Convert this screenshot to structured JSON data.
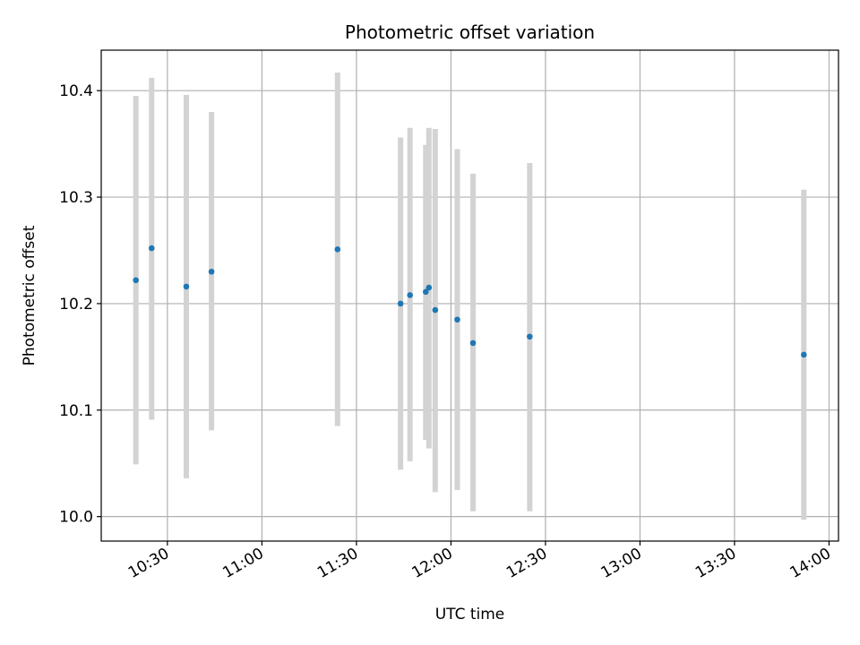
{
  "chart_data": {
    "type": "scatter",
    "title": "Photometric offset variation",
    "xlabel": "UTC time",
    "ylabel": "Photometric offset",
    "x_tick_labels": [
      "10:30",
      "11:00",
      "11:30",
      "12:00",
      "12:30",
      "13:00",
      "13:30",
      "14:00"
    ],
    "y_tick_labels": [
      "10.0",
      "10.1",
      "10.2",
      "10.3",
      "10.4"
    ],
    "y_ticks": [
      10.0,
      10.1,
      10.2,
      10.3,
      10.4
    ],
    "ylim": [
      9.977,
      10.438
    ],
    "xlim": [
      "10:09",
      "14:03"
    ],
    "grid": true,
    "colors": {
      "points": "#1f77b4",
      "errorbars": "#d3d3d3",
      "grid": "#b0b0b0"
    },
    "points": [
      {
        "x": "10:20",
        "y": 10.222,
        "ylow": 10.049,
        "yhigh": 10.395
      },
      {
        "x": "10:25",
        "y": 10.252,
        "ylow": 10.091,
        "yhigh": 10.412
      },
      {
        "x": "10:36",
        "y": 10.216,
        "ylow": 10.036,
        "yhigh": 10.396
      },
      {
        "x": "10:44",
        "y": 10.23,
        "ylow": 10.081,
        "yhigh": 10.38
      },
      {
        "x": "11:24",
        "y": 10.251,
        "ylow": 10.085,
        "yhigh": 10.417
      },
      {
        "x": "11:44",
        "y": 10.2,
        "ylow": 10.044,
        "yhigh": 10.356
      },
      {
        "x": "11:47",
        "y": 10.208,
        "ylow": 10.052,
        "yhigh": 10.365
      },
      {
        "x": "11:52",
        "y": 10.211,
        "ylow": 10.072,
        "yhigh": 10.349
      },
      {
        "x": "11:53",
        "y": 10.215,
        "ylow": 10.064,
        "yhigh": 10.365
      },
      {
        "x": "11:55",
        "y": 10.194,
        "ylow": 10.023,
        "yhigh": 10.364
      },
      {
        "x": "12:02",
        "y": 10.185,
        "ylow": 10.025,
        "yhigh": 10.345
      },
      {
        "x": "12:07",
        "y": 10.163,
        "ylow": 10.005,
        "yhigh": 10.322
      },
      {
        "x": "12:25",
        "y": 10.169,
        "ylow": 10.005,
        "yhigh": 10.332
      },
      {
        "x": "13:52",
        "y": 10.152,
        "ylow": 9.997,
        "yhigh": 10.307
      }
    ]
  }
}
